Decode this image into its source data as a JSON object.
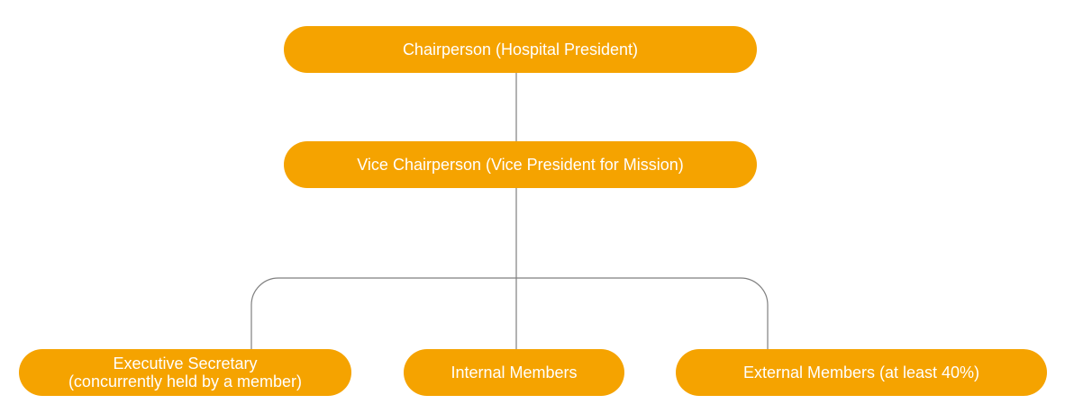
{
  "colors": {
    "node_fill": "#F5A300",
    "node_text": "#FFFFFF",
    "connector": "#7F7F7F"
  },
  "nodes": {
    "chairperson": "Chairperson (Hospital President)",
    "vice_chairperson": "Vice Chairperson (Vice President for Mission)",
    "executive_secretary": {
      "line1": "Executive Secretary",
      "line2": "(concurrently held by a member)"
    },
    "internal_members": "Internal Members",
    "external_members": "External Members (at least 40%)"
  }
}
